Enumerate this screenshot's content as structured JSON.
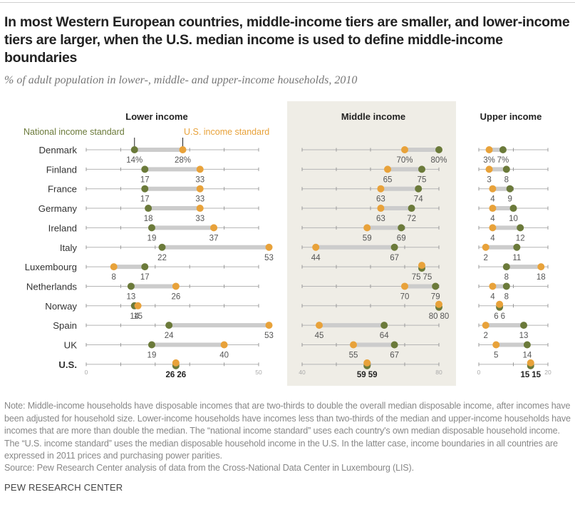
{
  "title": "In most Western European countries, middle-income tiers are smaller, and lower-income tiers are larger, when the U.S. median income is used to define middle-income boundaries",
  "subtitle": "% of adult population in lower-, middle- and upper-income households, 2010",
  "note": "Note: Middle-income households have disposable incomes that are two-thirds to double the overall median disposable income, after incomes have been adjusted for household size. Lower-income households have incomes less than two-thirds of the median and upper-income households have incomes that are more than double the median. The “national income standard” uses each country's own median disposable household income. The “U.S. income standard” uses the median disposable household income in the U.S. In the latter case, income boundaries in all countries are expressed in 2011 prices and purchasing power parities.",
  "source": "Source: Pew Research Center analysis of data from the Cross-National Data Center in Luxembourg (LIS).",
  "brand": "PEW RESEARCH CENTER",
  "colors": {
    "national": "#6b7a3a",
    "us": "#e8a23a",
    "connector": "#cccccc",
    "axis": "#999999",
    "middle_panel_bg": "#efede6"
  },
  "chart_data": {
    "type": "dot-plot",
    "legend": {
      "national": "National income standard",
      "us": "U.S. income standard",
      "placement": "top of lower-income panel"
    },
    "countries": [
      "Denmark",
      "Finland",
      "France",
      "Germany",
      "Ireland",
      "Italy",
      "Luxembourg",
      "Netherlands",
      "Norway",
      "Spain",
      "UK",
      "U.S."
    ],
    "highlight_country": "U.S.",
    "panels": [
      {
        "id": "lower",
        "title": "Lower income",
        "xlim": [
          0,
          50
        ],
        "ticks": [
          0,
          10,
          20,
          30,
          40,
          50
        ],
        "tick_labels": [
          "0",
          "50"
        ],
        "series": [
          {
            "name": "National income standard",
            "values": [
              14,
              17,
              17,
              18,
              19,
              22,
              17,
              13,
              14,
              24,
              19,
              26
            ]
          },
          {
            "name": "U.S. income standard",
            "values": [
              28,
              33,
              33,
              33,
              37,
              53,
              8,
              26,
              15,
              53,
              40,
              26
            ]
          }
        ]
      },
      {
        "id": "middle",
        "title": "Middle income",
        "xlim": [
          40,
          80
        ],
        "ticks": [
          40,
          50,
          60,
          70,
          80
        ],
        "tick_labels": [
          "40",
          "80"
        ],
        "series": [
          {
            "name": "National income standard",
            "values": [
              80,
              75,
              74,
              72,
              69,
              67,
              75,
              79,
              80,
              64,
              67,
              59
            ]
          },
          {
            "name": "U.S. income standard",
            "values": [
              70,
              65,
              63,
              63,
              59,
              44,
              75,
              70,
              80,
              45,
              55,
              59
            ]
          }
        ]
      },
      {
        "id": "upper",
        "title": "Upper income",
        "xlim": [
          0,
          20
        ],
        "ticks": [
          0,
          10,
          20
        ],
        "tick_labels": [
          "0",
          "20"
        ],
        "series": [
          {
            "name": "National income standard",
            "values": [
              7,
              8,
              9,
              10,
              12,
              11,
              8,
              8,
              6,
              13,
              14,
              15
            ]
          },
          {
            "name": "U.S. income standard",
            "values": [
              3,
              3,
              4,
              4,
              4,
              2,
              18,
              4,
              6,
              2,
              5,
              15
            ]
          }
        ]
      }
    ]
  }
}
